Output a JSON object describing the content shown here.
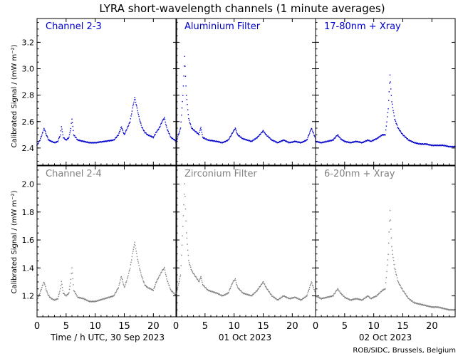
{
  "title": "LYRA short-wavelength channels (1 minute averages)",
  "ylabel": "Calibrated Signal / (mW m⁻²)",
  "credit": "ROB/SIDC, Brussels, Belgium",
  "xlabels": [
    "Time / h UTC, 30 Sep 2023",
    "01 Oct 2023",
    "02 Oct 2023"
  ],
  "xticks": [
    0,
    5,
    10,
    15,
    20
  ],
  "colors": {
    "top": "#0000cc",
    "bottom": "#808080",
    "axis": "#000000"
  },
  "chart_data": [
    {
      "type": "scatter",
      "row": "top",
      "ylim": [
        2.27,
        3.38
      ],
      "yticks": [
        2.4,
        2.6,
        2.8,
        3.0,
        3.2
      ],
      "panels": [
        {
          "name": "Channel 2-3",
          "day": "30 Sep 2023",
          "gaps": [
            [
              10.3,
              13.2
            ]
          ],
          "points": [
            [
              0,
              2.42
            ],
            [
              0.5,
              2.46
            ],
            [
              1,
              2.52
            ],
            [
              1.2,
              2.55
            ],
            [
              1.6,
              2.5
            ],
            [
              2,
              2.46
            ],
            [
              2.5,
              2.45
            ],
            [
              3,
              2.44
            ],
            [
              3.6,
              2.45
            ],
            [
              4,
              2.5
            ],
            [
              4.2,
              2.56
            ],
            [
              4.5,
              2.48
            ],
            [
              5,
              2.46
            ],
            [
              5.5,
              2.48
            ],
            [
              5.8,
              2.55
            ],
            [
              6,
              2.62
            ],
            [
              6.3,
              2.5
            ],
            [
              7,
              2.46
            ],
            [
              8,
              2.45
            ],
            [
              9,
              2.44
            ],
            [
              10,
              2.44
            ],
            [
              13.2,
              2.46
            ],
            [
              14,
              2.5
            ],
            [
              14.5,
              2.56
            ],
            [
              15,
              2.5
            ],
            [
              15.5,
              2.55
            ],
            [
              16,
              2.6
            ],
            [
              16.5,
              2.72
            ],
            [
              16.8,
              2.78
            ],
            [
              17.2,
              2.7
            ],
            [
              17.6,
              2.62
            ],
            [
              18,
              2.56
            ],
            [
              18.5,
              2.52
            ],
            [
              19,
              2.5
            ],
            [
              20,
              2.48
            ],
            [
              20.5,
              2.52
            ],
            [
              21,
              2.55
            ],
            [
              21.5,
              2.6
            ],
            [
              21.9,
              2.63
            ],
            [
              22.3,
              2.55
            ],
            [
              23,
              2.48
            ],
            [
              24,
              2.45
            ]
          ]
        },
        {
          "name": "Aluminium Filter",
          "day": "01 Oct 2023",
          "gaps": [],
          "points": [
            [
              0,
              2.44
            ],
            [
              0.8,
              2.55
            ],
            [
              1.2,
              2.8
            ],
            [
              1.5,
              3.09
            ],
            [
              1.8,
              2.8
            ],
            [
              2.2,
              2.62
            ],
            [
              2.7,
              2.55
            ],
            [
              3.5,
              2.52
            ],
            [
              4,
              2.5
            ],
            [
              4.3,
              2.56
            ],
            [
              4.6,
              2.48
            ],
            [
              5.5,
              2.46
            ],
            [
              7,
              2.45
            ],
            [
              8,
              2.44
            ],
            [
              9,
              2.46
            ],
            [
              9.8,
              2.52
            ],
            [
              10.2,
              2.55
            ],
            [
              10.6,
              2.5
            ],
            [
              11.5,
              2.47
            ],
            [
              13,
              2.45
            ],
            [
              14,
              2.48
            ],
            [
              15,
              2.53
            ],
            [
              15.5,
              2.5
            ],
            [
              16.5,
              2.46
            ],
            [
              17.5,
              2.44
            ],
            [
              18.5,
              2.46
            ],
            [
              19.5,
              2.44
            ],
            [
              20.5,
              2.45
            ],
            [
              21.5,
              2.44
            ],
            [
              22.5,
              2.46
            ],
            [
              23.3,
              2.55
            ],
            [
              24,
              2.47
            ]
          ]
        },
        {
          "name": "17-80nm + Xray",
          "day": "02 Oct 2023",
          "gaps": [],
          "points": [
            [
              0,
              2.45
            ],
            [
              1,
              2.44
            ],
            [
              2,
              2.45
            ],
            [
              3,
              2.46
            ],
            [
              3.8,
              2.5
            ],
            [
              4.3,
              2.47
            ],
            [
              5,
              2.45
            ],
            [
              6,
              2.44
            ],
            [
              7,
              2.45
            ],
            [
              8,
              2.44
            ],
            [
              9,
              2.46
            ],
            [
              9.5,
              2.45
            ],
            [
              10.5,
              2.47
            ],
            [
              11.5,
              2.5
            ],
            [
              12,
              2.5
            ],
            [
              12.5,
              2.7
            ],
            [
              12.8,
              2.95
            ],
            [
              13.1,
              2.75
            ],
            [
              13.6,
              2.62
            ],
            [
              14.2,
              2.55
            ],
            [
              15,
              2.5
            ],
            [
              16,
              2.46
            ],
            [
              17,
              2.44
            ],
            [
              18,
              2.43
            ],
            [
              19,
              2.43
            ],
            [
              20,
              2.42
            ],
            [
              21,
              2.42
            ],
            [
              22,
              2.42
            ],
            [
              23,
              2.41
            ],
            [
              24,
              2.41
            ]
          ]
        }
      ]
    },
    {
      "type": "scatter",
      "row": "bottom",
      "ylim": [
        1.05,
        2.13
      ],
      "yticks": [
        1.2,
        1.4,
        1.6,
        1.8,
        2.0
      ],
      "panels": [
        {
          "name": "Channel 2-4",
          "day": "30 Sep 2023",
          "gaps": [
            [
              10.3,
              13.2
            ]
          ],
          "points": [
            [
              0,
              1.17
            ],
            [
              0.5,
              1.22
            ],
            [
              1,
              1.28
            ],
            [
              1.2,
              1.3
            ],
            [
              1.6,
              1.24
            ],
            [
              2,
              1.2
            ],
            [
              2.5,
              1.18
            ],
            [
              3,
              1.17
            ],
            [
              3.6,
              1.18
            ],
            [
              4,
              1.25
            ],
            [
              4.2,
              1.3
            ],
            [
              4.5,
              1.22
            ],
            [
              5,
              1.2
            ],
            [
              5.5,
              1.22
            ],
            [
              5.8,
              1.32
            ],
            [
              6,
              1.4
            ],
            [
              6.3,
              1.24
            ],
            [
              7,
              1.19
            ],
            [
              8,
              1.18
            ],
            [
              9,
              1.16
            ],
            [
              10,
              1.16
            ],
            [
              13.2,
              1.2
            ],
            [
              14,
              1.26
            ],
            [
              14.5,
              1.34
            ],
            [
              15,
              1.26
            ],
            [
              15.5,
              1.32
            ],
            [
              16,
              1.4
            ],
            [
              16.5,
              1.52
            ],
            [
              16.8,
              1.58
            ],
            [
              17.2,
              1.48
            ],
            [
              17.6,
              1.4
            ],
            [
              18,
              1.34
            ],
            [
              18.5,
              1.28
            ],
            [
              19,
              1.26
            ],
            [
              20,
              1.24
            ],
            [
              20.5,
              1.3
            ],
            [
              21,
              1.34
            ],
            [
              21.5,
              1.38
            ],
            [
              21.9,
              1.4
            ],
            [
              22.3,
              1.32
            ],
            [
              23,
              1.24
            ],
            [
              24,
              1.2
            ]
          ]
        },
        {
          "name": "Zirconium Filter",
          "day": "01 Oct 2023",
          "gaps": [],
          "points": [
            [
              0,
              1.2
            ],
            [
              0.8,
              1.35
            ],
            [
              1.2,
              1.7
            ],
            [
              1.5,
              2.0
            ],
            [
              1.8,
              1.65
            ],
            [
              2.2,
              1.45
            ],
            [
              2.7,
              1.38
            ],
            [
              3.5,
              1.33
            ],
            [
              4,
              1.3
            ],
            [
              4.3,
              1.34
            ],
            [
              4.6,
              1.28
            ],
            [
              5.5,
              1.24
            ],
            [
              7,
              1.22
            ],
            [
              8,
              1.2
            ],
            [
              9,
              1.22
            ],
            [
              9.8,
              1.3
            ],
            [
              10.2,
              1.32
            ],
            [
              10.6,
              1.26
            ],
            [
              11.5,
              1.22
            ],
            [
              13,
              1.2
            ],
            [
              14,
              1.24
            ],
            [
              15,
              1.3
            ],
            [
              15.5,
              1.26
            ],
            [
              16.5,
              1.2
            ],
            [
              17.5,
              1.17
            ],
            [
              18.5,
              1.2
            ],
            [
              19.5,
              1.18
            ],
            [
              20.5,
              1.19
            ],
            [
              21.5,
              1.17
            ],
            [
              22.5,
              1.2
            ],
            [
              23.3,
              1.3
            ],
            [
              24,
              1.22
            ]
          ]
        },
        {
          "name": "6-20nm + Xray",
          "day": "02 Oct 2023",
          "gaps": [],
          "points": [
            [
              0,
              1.2
            ],
            [
              1,
              1.18
            ],
            [
              2,
              1.19
            ],
            [
              3,
              1.2
            ],
            [
              3.8,
              1.25
            ],
            [
              4.3,
              1.22
            ],
            [
              5,
              1.19
            ],
            [
              6,
              1.17
            ],
            [
              7,
              1.18
            ],
            [
              8,
              1.17
            ],
            [
              9,
              1.2
            ],
            [
              9.5,
              1.18
            ],
            [
              10.5,
              1.2
            ],
            [
              11.5,
              1.24
            ],
            [
              12,
              1.25
            ],
            [
              12.5,
              1.5
            ],
            [
              12.8,
              1.81
            ],
            [
              13.1,
              1.55
            ],
            [
              13.6,
              1.4
            ],
            [
              14.2,
              1.3
            ],
            [
              15,
              1.24
            ],
            [
              16,
              1.18
            ],
            [
              17,
              1.15
            ],
            [
              18,
              1.14
            ],
            [
              19,
              1.13
            ],
            [
              20,
              1.12
            ],
            [
              21,
              1.12
            ],
            [
              22,
              1.11
            ],
            [
              23,
              1.1
            ],
            [
              24,
              1.1
            ]
          ]
        }
      ]
    }
  ]
}
